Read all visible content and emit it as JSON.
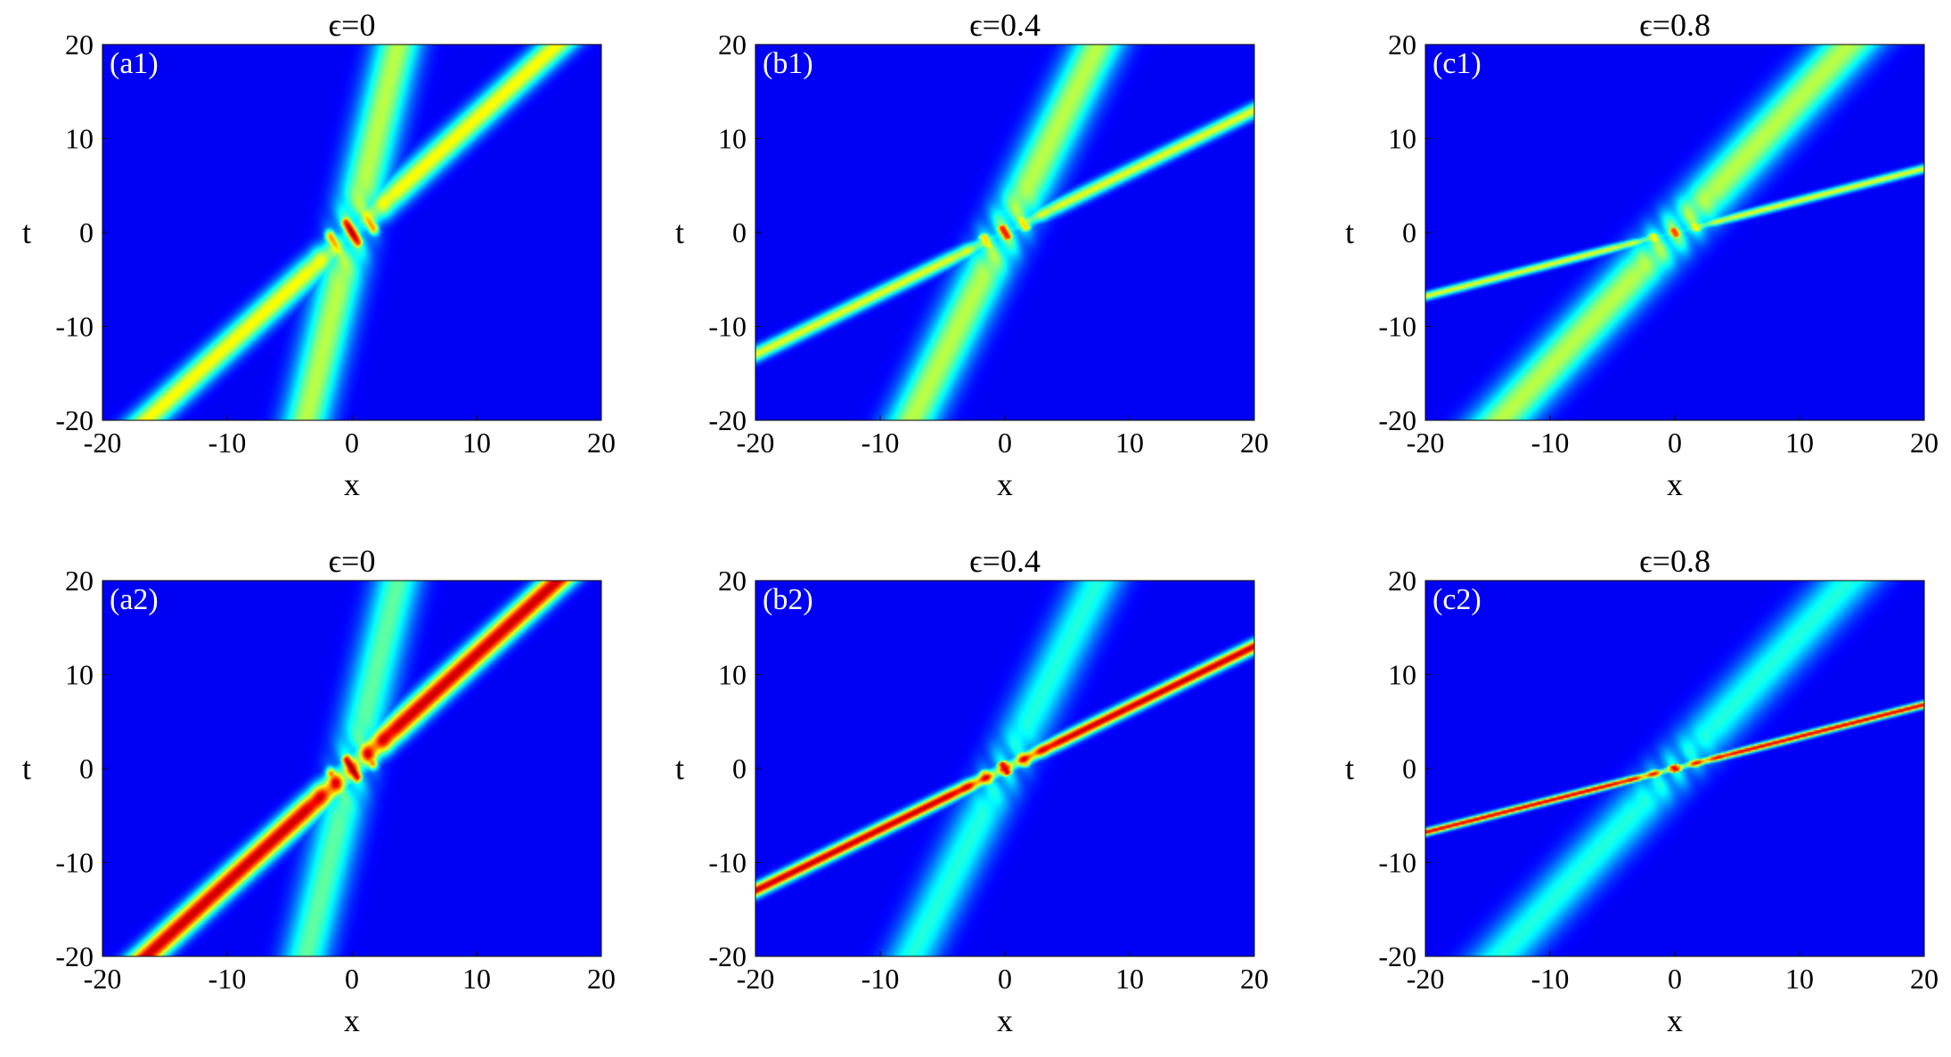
{
  "chart_data": [
    {
      "type": "heatmap",
      "panel": "(a1)",
      "title": "ϵ=0",
      "xlabel": "x",
      "ylabel": "t",
      "xlim": [
        -20,
        20
      ],
      "ylim": [
        -20,
        20
      ],
      "xticks": [
        -20,
        -10,
        0,
        10,
        20
      ],
      "yticks": [
        -20,
        -10,
        0,
        10,
        20
      ],
      "colormap": "jet",
      "series": [
        {
          "line": [
            [
              -16.5,
              -20
            ],
            [
              16.5,
              20
            ]
          ],
          "width": 0.9,
          "intensity": 0.58
        },
        {
          "line": [
            [
              -3.7,
              -20
            ],
            [
              3.7,
              20
            ]
          ],
          "width": 1.3,
          "intensity": 0.5
        }
      ],
      "interaction": {
        "center": [
          0,
          0
        ],
        "intensity": 0.95
      }
    },
    {
      "type": "heatmap",
      "panel": "(b1)",
      "title": "ϵ=0.4",
      "xlabel": "x",
      "ylabel": "t",
      "xlim": [
        -20,
        20
      ],
      "ylim": [
        -20,
        20
      ],
      "xticks": [
        -20,
        -10,
        0,
        10,
        20
      ],
      "yticks": [
        -20,
        -10,
        0,
        10,
        20
      ],
      "colormap": "jet",
      "series": [
        {
          "line": [
            [
              -20,
              -13
            ],
            [
              20,
              13
            ]
          ],
          "width": 0.5,
          "intensity": 0.55
        },
        {
          "line": [
            [
              -7.5,
              -20
            ],
            [
              7.5,
              20
            ]
          ],
          "width": 1.4,
          "intensity": 0.5
        }
      ],
      "interaction": {
        "center": [
          0,
          0
        ],
        "intensity": 0.85
      }
    },
    {
      "type": "heatmap",
      "panel": "(c1)",
      "title": "ϵ=0.8",
      "xlabel": "x",
      "ylabel": "t",
      "xlim": [
        -20,
        20
      ],
      "ylim": [
        -20,
        20
      ],
      "xticks": [
        -20,
        -10,
        0,
        10,
        20
      ],
      "yticks": [
        -20,
        -10,
        0,
        10,
        20
      ],
      "colormap": "jet",
      "series": [
        {
          "line": [
            [
              -20,
              -6.8
            ],
            [
              20,
              6.8
            ]
          ],
          "width": 0.3,
          "intensity": 0.55
        },
        {
          "line": [
            [
              -14,
              -20
            ],
            [
              14,
              20
            ]
          ],
          "width": 1.5,
          "intensity": 0.5
        }
      ],
      "interaction": {
        "center": [
          0,
          0
        ],
        "intensity": 0.8
      }
    },
    {
      "type": "heatmap",
      "panel": "(a2)",
      "title": "ϵ=0",
      "xlabel": "x",
      "ylabel": "t",
      "xlim": [
        -20,
        20
      ],
      "ylim": [
        -20,
        20
      ],
      "xticks": [
        -20,
        -10,
        0,
        10,
        20
      ],
      "yticks": [
        -20,
        -10,
        0,
        10,
        20
      ],
      "colormap": "jet",
      "series": [
        {
          "line": [
            [
              -16.5,
              -20
            ],
            [
              16.5,
              20
            ]
          ],
          "width": 0.8,
          "intensity": 0.92
        },
        {
          "line": [
            [
              -3.7,
              -20
            ],
            [
              3.7,
              20
            ]
          ],
          "width": 1.3,
          "intensity": 0.4
        }
      ],
      "interaction": {
        "center": [
          0,
          0
        ],
        "intensity": 0.98
      }
    },
    {
      "type": "heatmap",
      "panel": "(b2)",
      "title": "ϵ=0.4",
      "xlabel": "x",
      "ylabel": "t",
      "xlim": [
        -20,
        20
      ],
      "ylim": [
        -20,
        20
      ],
      "xticks": [
        -20,
        -10,
        0,
        10,
        20
      ],
      "yticks": [
        -20,
        -10,
        0,
        10,
        20
      ],
      "colormap": "jet",
      "series": [
        {
          "line": [
            [
              -20,
              -13
            ],
            [
              20,
              13
            ]
          ],
          "width": 0.45,
          "intensity": 0.92
        },
        {
          "line": [
            [
              -7.5,
              -20
            ],
            [
              7.5,
              20
            ]
          ],
          "width": 1.4,
          "intensity": 0.33
        }
      ],
      "interaction": {
        "center": [
          0,
          0
        ],
        "intensity": 0.9
      }
    },
    {
      "type": "heatmap",
      "panel": "(c2)",
      "title": "ϵ=0.8",
      "xlabel": "x",
      "ylabel": "t",
      "xlim": [
        -20,
        20
      ],
      "ylim": [
        -20,
        20
      ],
      "xticks": [
        -20,
        -10,
        0,
        10,
        20
      ],
      "yticks": [
        -20,
        -10,
        0,
        10,
        20
      ],
      "colormap": "jet",
      "series": [
        {
          "line": [
            [
              -20,
              -6.8
            ],
            [
              20,
              6.8
            ]
          ],
          "width": 0.25,
          "intensity": 0.9
        },
        {
          "line": [
            [
              -14,
              -20
            ],
            [
              14,
              20
            ]
          ],
          "width": 1.5,
          "intensity": 0.33
        }
      ],
      "interaction": {
        "center": [
          0,
          0
        ],
        "intensity": 0.85
      }
    }
  ]
}
